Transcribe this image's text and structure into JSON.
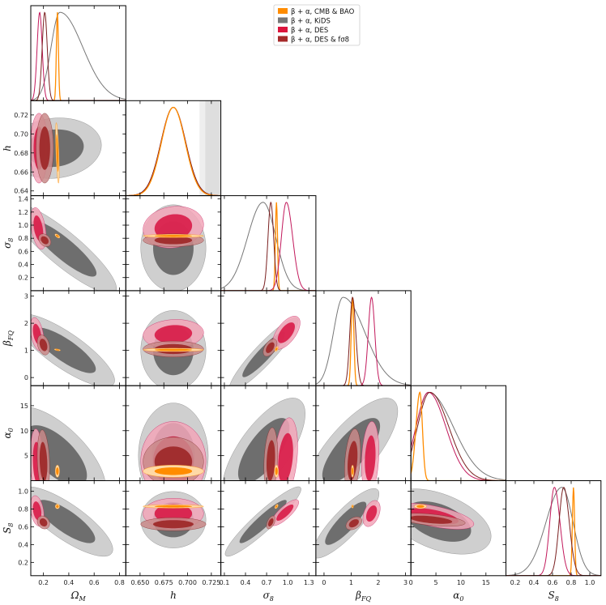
{
  "chart_data": {
    "type": "corner",
    "legend": {
      "placement": "top-center",
      "entries": [
        {
          "key": "cmb",
          "label": "β + α, CMB & BAO",
          "color": "#ff8c00"
        },
        {
          "key": "kids",
          "label": "β + α, KiDS",
          "color": "#777777"
        },
        {
          "key": "des",
          "label": "β + α, DES",
          "color": "#dc143c"
        },
        {
          "key": "desfs8",
          "label": "β + α, DES & fσ8",
          "color": "#a52a2a"
        }
      ]
    },
    "parameters": [
      {
        "key": "om",
        "label": "Ω",
        "sub": "M",
        "range": [
          0.1,
          0.85
        ],
        "ticks": [
          0.2,
          0.4,
          0.6,
          0.8
        ],
        "tick_labels": [
          "0.2",
          "0.4",
          "0.6",
          "0.8"
        ]
      },
      {
        "key": "h",
        "label": "h",
        "sub": "",
        "range": [
          0.635,
          0.735
        ],
        "ticks": [
          0.64,
          0.66,
          0.68,
          0.7,
          0.72
        ],
        "tick_labels": [
          "0.64",
          "0.66",
          "0.68",
          "0.70",
          "0.72"
        ],
        "x_ticks": [
          0.65,
          0.675,
          0.7,
          0.725
        ],
        "x_tick_labels": [
          "0.650",
          "0.675",
          "0.700",
          "0.725"
        ]
      },
      {
        "key": "s8",
        "label": "σ",
        "sub": "8",
        "range": [
          0.0,
          1.45
        ],
        "ticks": [
          0.2,
          0.4,
          0.6,
          0.8,
          1.0,
          1.2,
          1.4
        ],
        "tick_labels": [
          "0.2",
          "0.4",
          "0.6",
          "0.8",
          "1.0",
          "1.2",
          "1.4"
        ],
        "x_range": [
          0.05,
          1.4
        ],
        "x_ticks": [
          0.1,
          0.4,
          0.7,
          1.0,
          1.3
        ],
        "x_tick_labels": [
          "0.1",
          "0.4",
          "0.7",
          "1.0",
          "1.3"
        ]
      },
      {
        "key": "bfq",
        "label": "β",
        "sub": "FQ",
        "range": [
          -0.3,
          3.2
        ],
        "ticks": [
          0,
          1,
          2,
          3
        ],
        "tick_labels": [
          "0",
          "1",
          "2",
          "3"
        ]
      },
      {
        "key": "a0",
        "label": "α",
        "sub": "0",
        "range": [
          0,
          19
        ],
        "ticks": [
          5,
          10,
          15
        ],
        "tick_labels": [
          "5",
          "10",
          "15"
        ],
        "x_ticks": [
          0,
          5,
          10,
          15
        ],
        "x_tick_labels": [
          "0",
          "5",
          "10",
          "15"
        ]
      },
      {
        "key": "S8",
        "label": "S",
        "sub": "8",
        "range": [
          0.05,
          1.12
        ],
        "ticks": [
          0.2,
          0.4,
          0.6,
          0.8,
          1.0
        ],
        "tick_labels": [
          "0.2",
          "0.4",
          "0.6",
          "0.8",
          "1.0"
        ],
        "x_range": [
          0.1,
          1.12
        ],
        "x_ticks": [
          0.2,
          0.4,
          0.6,
          0.8,
          1.0
        ],
        "x_tick_labels": [
          "0.2",
          "0.4",
          "0.6",
          "0.8",
          "1.0"
        ]
      }
    ],
    "marginals": {
      "om": [
        {
          "series": "kids",
          "peak": 0.33,
          "sigma_left": 0.07,
          "sigma_right": 0.18
        },
        {
          "series": "cmb",
          "peak": 0.31,
          "sigma_left": 0.008,
          "sigma_right": 0.008
        },
        {
          "series": "des",
          "peak": 0.17,
          "sigma_left": 0.02,
          "sigma_right": 0.02
        },
        {
          "series": "desfs8",
          "peak": 0.21,
          "sigma_left": 0.02,
          "sigma_right": 0.02
        }
      ],
      "h": [
        {
          "series": "kids",
          "peak": 0.685,
          "sigma_left": 0.013,
          "sigma_right": 0.013
        },
        {
          "series": "des",
          "peak": 0.685,
          "sigma_left": 0.013,
          "sigma_right": 0.013
        },
        {
          "series": "desfs8",
          "peak": 0.685,
          "sigma_left": 0.013,
          "sigma_right": 0.013
        },
        {
          "series": "cmb",
          "peak": 0.685,
          "sigma_left": 0.0125,
          "sigma_right": 0.0125
        }
      ],
      "s8": [
        {
          "series": "kids",
          "peak": 0.65,
          "sigma_left": 0.22,
          "sigma_right": 0.18
        },
        {
          "series": "cmb",
          "peak": 0.84,
          "sigma_left": 0.015,
          "sigma_right": 0.015
        },
        {
          "series": "desfs8",
          "peak": 0.76,
          "sigma_left": 0.04,
          "sigma_right": 0.04
        },
        {
          "series": "des",
          "peak": 0.98,
          "sigma_left": 0.07,
          "sigma_right": 0.09
        }
      ],
      "bfq": [
        {
          "series": "kids",
          "peak": 0.7,
          "sigma_left": 0.35,
          "sigma_right": 0.8
        },
        {
          "series": "cmb",
          "peak": 1.05,
          "sigma_left": 0.05,
          "sigma_right": 0.05
        },
        {
          "series": "desfs8",
          "peak": 1.05,
          "sigma_left": 0.1,
          "sigma_right": 0.12
        },
        {
          "series": "des",
          "peak": 1.75,
          "sigma_left": 0.12,
          "sigma_right": 0.12
        }
      ],
      "a0": [
        {
          "series": "kids",
          "peak": 3.5,
          "sigma_left": 2.5,
          "sigma_right": 5.0
        },
        {
          "series": "des",
          "peak": 3.5,
          "sigma_left": 2.5,
          "sigma_right": 3.5
        },
        {
          "series": "desfs8",
          "peak": 3.8,
          "sigma_left": 2.5,
          "sigma_right": 3.8
        },
        {
          "series": "cmb",
          "peak": 1.8,
          "sigma_left": 0.8,
          "sigma_right": 0.5
        }
      ],
      "S8": [
        {
          "series": "kids",
          "peak": 0.7,
          "sigma_left": 0.17,
          "sigma_right": 0.12
        },
        {
          "series": "cmb",
          "peak": 0.825,
          "sigma_left": 0.012,
          "sigma_right": 0.012
        },
        {
          "series": "des",
          "peak": 0.62,
          "sigma_left": 0.05,
          "sigma_right": 0.06
        },
        {
          "series": "desfs8",
          "peak": 0.72,
          "sigma_left": 0.05,
          "sigma_right": 0.06
        }
      ]
    },
    "contours": [
      {
        "x": "om",
        "y": "h",
        "series": "kids",
        "mx": 0.29,
        "my": 0.685,
        "sx": 0.15,
        "sy": 0.013,
        "rho": 0.1
      },
      {
        "x": "om",
        "y": "h",
        "series": "des",
        "mx": 0.165,
        "my": 0.685,
        "sx": 0.028,
        "sy": 0.015,
        "rho": 0.0
      },
      {
        "x": "om",
        "y": "h",
        "series": "desfs8",
        "mx": 0.21,
        "my": 0.685,
        "sx": 0.028,
        "sy": 0.015,
        "rho": 0.0
      },
      {
        "x": "om",
        "y": "h",
        "series": "cmb",
        "mx": 0.31,
        "my": 0.68,
        "sx": 0.006,
        "sy": 0.013,
        "rho": -0.6
      },
      {
        "x": "om",
        "y": "s8",
        "series": "kids",
        "mx": 0.36,
        "my": 0.64,
        "sx": 0.17,
        "sy": 0.28,
        "rho": -0.88
      },
      {
        "x": "om",
        "y": "s8",
        "series": "des",
        "mx": 0.16,
        "my": 0.95,
        "sx": 0.025,
        "sy": 0.13,
        "rho": -0.4
      },
      {
        "x": "om",
        "y": "s8",
        "series": "desfs8",
        "mx": 0.21,
        "my": 0.77,
        "sx": 0.02,
        "sy": 0.04,
        "rho": -0.3
      },
      {
        "x": "om",
        "y": "s8",
        "series": "cmb",
        "mx": 0.31,
        "my": 0.835,
        "sx": 0.008,
        "sy": 0.013,
        "rho": -0.6
      },
      {
        "x": "om",
        "y": "bfq",
        "series": "kids",
        "mx": 0.37,
        "my": 1.0,
        "sx": 0.16,
        "sy": 0.55,
        "rho": -0.82
      },
      {
        "x": "om",
        "y": "bfq",
        "series": "des",
        "mx": 0.15,
        "my": 1.6,
        "sx": 0.022,
        "sy": 0.25,
        "rho": -0.4
      },
      {
        "x": "om",
        "y": "bfq",
        "series": "desfs8",
        "mx": 0.2,
        "my": 1.2,
        "sx": 0.02,
        "sy": 0.15,
        "rho": -0.3
      },
      {
        "x": "om",
        "y": "bfq",
        "series": "cmb",
        "mx": 0.31,
        "my": 1.02,
        "sx": 0.01,
        "sy": 0.015,
        "rho": -0.5
      },
      {
        "x": "om",
        "y": "a0",
        "series": "kids",
        "mx": 0.3,
        "my": 5.0,
        "sx": 0.16,
        "sy": 4.0,
        "rho": -0.65
      },
      {
        "x": "om",
        "y": "a0",
        "series": "des",
        "mx": 0.15,
        "my": 3.5,
        "sx": 0.022,
        "sy": 2.8,
        "rho": -0.2
      },
      {
        "x": "om",
        "y": "a0",
        "series": "desfs8",
        "mx": 0.2,
        "my": 3.8,
        "sx": 0.02,
        "sy": 2.6,
        "rho": -0.2
      },
      {
        "x": "om",
        "y": "a0",
        "series": "cmb",
        "mx": 0.31,
        "my": 1.9,
        "sx": 0.007,
        "sy": 0.5,
        "rho": 0.0
      },
      {
        "x": "om",
        "y": "S8",
        "series": "kids",
        "mx": 0.38,
        "my": 0.66,
        "sx": 0.15,
        "sy": 0.16,
        "rho": -0.8
      },
      {
        "x": "om",
        "y": "S8",
        "series": "des",
        "mx": 0.15,
        "my": 0.78,
        "sx": 0.022,
        "sy": 0.07,
        "rho": -0.3
      },
      {
        "x": "om",
        "y": "S8",
        "series": "desfs8",
        "mx": 0.2,
        "my": 0.65,
        "sx": 0.02,
        "sy": 0.03,
        "rho": -0.2
      },
      {
        "x": "om",
        "y": "S8",
        "series": "cmb",
        "mx": 0.31,
        "my": 0.83,
        "sx": 0.007,
        "sy": 0.011,
        "rho": 0.0
      },
      {
        "x": "h",
        "y": "s8",
        "series": "kids",
        "mx": 0.685,
        "my": 0.65,
        "sx": 0.014,
        "sy": 0.27,
        "rho": 0.0
      },
      {
        "x": "h",
        "y": "s8",
        "series": "des",
        "mx": 0.685,
        "my": 0.97,
        "sx": 0.013,
        "sy": 0.13,
        "rho": 0.12
      },
      {
        "x": "h",
        "y": "s8",
        "series": "desfs8",
        "mx": 0.685,
        "my": 0.77,
        "sx": 0.013,
        "sy": 0.04,
        "rho": 0.0
      },
      {
        "x": "h",
        "y": "s8",
        "series": "cmb",
        "mx": 0.685,
        "my": 0.835,
        "sx": 0.013,
        "sy": 0.01,
        "rho": 0.0
      },
      {
        "x": "h",
        "y": "bfq",
        "series": "kids",
        "mx": 0.685,
        "my": 1.0,
        "sx": 0.014,
        "sy": 0.6,
        "rho": 0.0
      },
      {
        "x": "h",
        "y": "bfq",
        "series": "des",
        "mx": 0.685,
        "my": 1.6,
        "sx": 0.013,
        "sy": 0.22,
        "rho": 0.1
      },
      {
        "x": "h",
        "y": "bfq",
        "series": "desfs8",
        "mx": 0.685,
        "my": 1.05,
        "sx": 0.013,
        "sy": 0.12,
        "rho": 0.0
      },
      {
        "x": "h",
        "y": "bfq",
        "series": "cmb",
        "mx": 0.685,
        "my": 1.02,
        "sx": 0.013,
        "sy": 0.025,
        "rho": 0.0
      },
      {
        "x": "h",
        "y": "a0",
        "series": "kids",
        "mx": 0.685,
        "my": 5.0,
        "sx": 0.015,
        "sy": 4.3,
        "rho": 0.0
      },
      {
        "x": "h",
        "y": "a0",
        "series": "des",
        "mx": 0.685,
        "my": 4.0,
        "sx": 0.014,
        "sy": 3.2,
        "rho": 0.0
      },
      {
        "x": "h",
        "y": "a0",
        "series": "desfs8",
        "mx": 0.685,
        "my": 3.8,
        "sx": 0.013,
        "sy": 2.0,
        "rho": 0.0
      },
      {
        "x": "h",
        "y": "a0",
        "series": "cmb",
        "mx": 0.685,
        "my": 1.9,
        "sx": 0.013,
        "sy": 0.5,
        "rho": 0.0
      },
      {
        "x": "h",
        "y": "S8",
        "series": "kids",
        "mx": 0.685,
        "my": 0.68,
        "sx": 0.014,
        "sy": 0.13,
        "rho": 0.0
      },
      {
        "x": "h",
        "y": "S8",
        "series": "des",
        "mx": 0.685,
        "my": 0.75,
        "sx": 0.013,
        "sy": 0.07,
        "rho": 0.0
      },
      {
        "x": "h",
        "y": "S8",
        "series": "desfs8",
        "mx": 0.685,
        "my": 0.63,
        "sx": 0.014,
        "sy": 0.03,
        "rho": 0.0
      },
      {
        "x": "h",
        "y": "S8",
        "series": "cmb",
        "mx": 0.685,
        "my": 0.83,
        "sx": 0.013,
        "sy": 0.008,
        "rho": 0.0
      },
      {
        "x": "s8",
        "y": "bfq",
        "series": "kids",
        "mx": 0.66,
        "my": 0.85,
        "sx": 0.2,
        "sy": 0.55,
        "rho": 0.92
      },
      {
        "x": "s8",
        "y": "bfq",
        "series": "des",
        "mx": 0.98,
        "my": 1.65,
        "sx": 0.08,
        "sy": 0.25,
        "rho": 0.6
      },
      {
        "x": "s8",
        "y": "bfq",
        "series": "desfs8",
        "mx": 0.75,
        "my": 1.1,
        "sx": 0.04,
        "sy": 0.13,
        "rho": 0.5
      },
      {
        "x": "s8",
        "y": "bfq",
        "series": "cmb",
        "mx": 0.84,
        "my": 1.05,
        "sx": 0.01,
        "sy": 0.04,
        "rho": 0.5
      },
      {
        "x": "s8",
        "y": "a0",
        "series": "kids",
        "mx": 0.66,
        "my": 6.0,
        "sx": 0.24,
        "sy": 4.3,
        "rho": 0.7
      },
      {
        "x": "s8",
        "y": "a0",
        "series": "des",
        "mx": 0.97,
        "my": 4.5,
        "sx": 0.07,
        "sy": 3.3,
        "rho": 0.3
      },
      {
        "x": "s8",
        "y": "a0",
        "series": "desfs8",
        "mx": 0.76,
        "my": 4.0,
        "sx": 0.04,
        "sy": 2.7,
        "rho": 0.2
      },
      {
        "x": "s8",
        "y": "a0",
        "series": "cmb",
        "mx": 0.84,
        "my": 1.9,
        "sx": 0.012,
        "sy": 0.5,
        "rho": 0.0
      },
      {
        "x": "s8",
        "y": "S8",
        "series": "kids",
        "mx": 0.65,
        "my": 0.66,
        "sx": 0.22,
        "sy": 0.16,
        "rho": 0.93
      },
      {
        "x": "s8",
        "y": "S8",
        "series": "des",
        "mx": 0.96,
        "my": 0.76,
        "sx": 0.08,
        "sy": 0.06,
        "rho": 0.8
      },
      {
        "x": "s8",
        "y": "S8",
        "series": "desfs8",
        "mx": 0.76,
        "my": 0.65,
        "sx": 0.025,
        "sy": 0.03,
        "rho": 0.5
      },
      {
        "x": "s8",
        "y": "S8",
        "series": "cmb",
        "mx": 0.84,
        "my": 0.83,
        "sx": 0.01,
        "sy": 0.01,
        "rho": 0.5
      },
      {
        "x": "bfq",
        "y": "a0",
        "series": "kids",
        "mx": 1.0,
        "my": 6.0,
        "sx": 0.7,
        "sy": 4.3,
        "rho": 0.75
      },
      {
        "x": "bfq",
        "y": "a0",
        "series": "des",
        "mx": 1.7,
        "my": 4.5,
        "sx": 0.13,
        "sy": 3.0,
        "rho": 0.2
      },
      {
        "x": "bfq",
        "y": "a0",
        "series": "desfs8",
        "mx": 1.05,
        "my": 4.0,
        "sx": 0.12,
        "sy": 2.6,
        "rho": 0.3
      },
      {
        "x": "bfq",
        "y": "a0",
        "series": "cmb",
        "mx": 1.05,
        "my": 1.9,
        "sx": 0.02,
        "sy": 0.5,
        "rho": 0.0
      },
      {
        "x": "bfq",
        "y": "S8",
        "series": "kids",
        "mx": 0.8,
        "my": 0.64,
        "sx": 0.5,
        "sy": 0.16,
        "rho": 0.85
      },
      {
        "x": "bfq",
        "y": "S8",
        "series": "des",
        "mx": 1.75,
        "my": 0.75,
        "sx": 0.13,
        "sy": 0.06,
        "rho": 0.4
      },
      {
        "x": "bfq",
        "y": "S8",
        "series": "desfs8",
        "mx": 1.1,
        "my": 0.64,
        "sx": 0.12,
        "sy": 0.03,
        "rho": 0.4
      },
      {
        "x": "bfq",
        "y": "S8",
        "series": "cmb",
        "mx": 1.05,
        "my": 0.83,
        "sx": 0.015,
        "sy": 0.008,
        "rho": 0.0
      },
      {
        "x": "a0",
        "y": "S8",
        "series": "kids",
        "mx": 5.5,
        "my": 0.66,
        "sx": 4.3,
        "sy": 0.15,
        "rho": -0.45
      },
      {
        "x": "a0",
        "y": "S8",
        "series": "des",
        "mx": 4.5,
        "my": 0.72,
        "sx": 3.3,
        "sy": 0.06,
        "rho": -0.6
      },
      {
        "x": "a0",
        "y": "S8",
        "series": "desfs8",
        "mx": 4.0,
        "my": 0.68,
        "sx": 2.8,
        "sy": 0.03,
        "rho": -0.5
      },
      {
        "x": "a0",
        "y": "S8",
        "series": "cmb",
        "mx": 1.9,
        "my": 0.83,
        "sx": 0.5,
        "sy": 0.01,
        "rho": 0.0
      }
    ]
  }
}
